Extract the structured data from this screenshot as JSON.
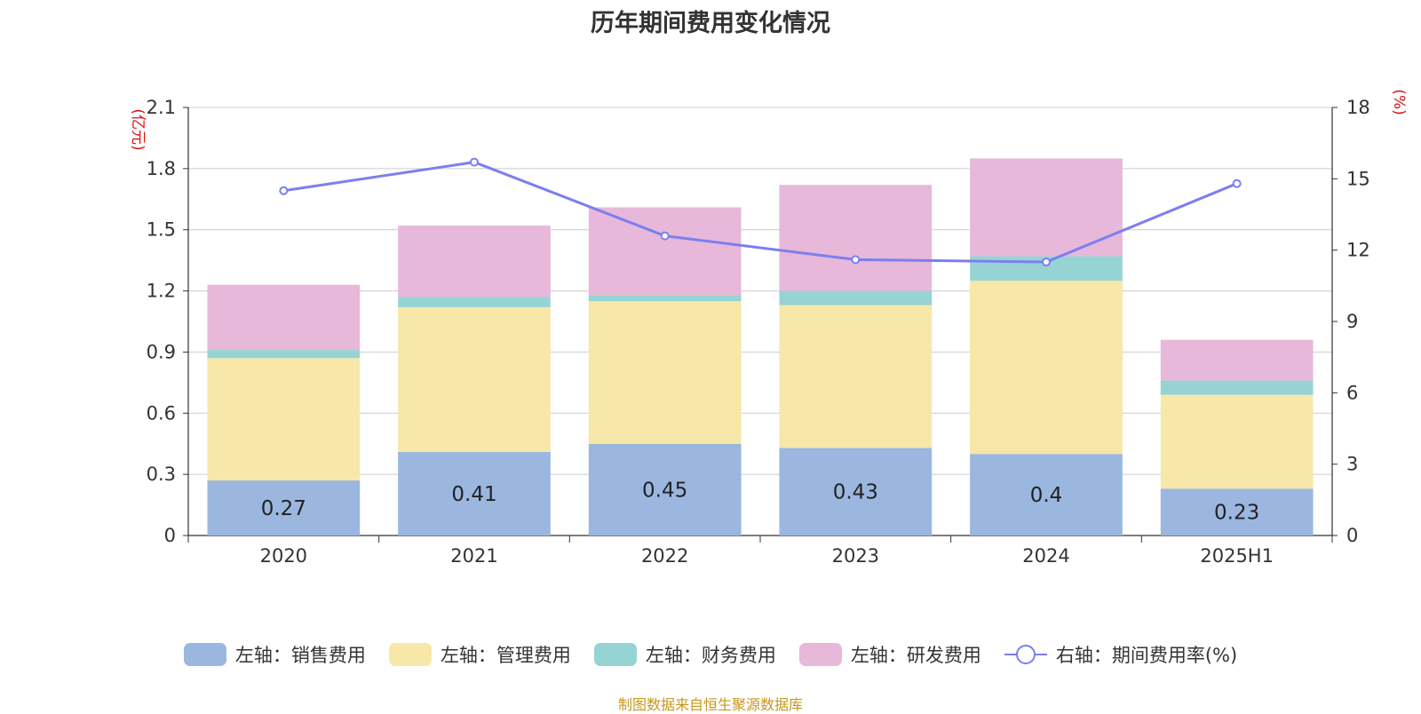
{
  "chart_data": {
    "type": "bar",
    "title": "历年期间费用变化情况",
    "categories": [
      "2020",
      "2021",
      "2022",
      "2023",
      "2024",
      "2025H1"
    ],
    "y_left": {
      "unit": "(亿元)",
      "ylim": [
        0,
        2.1
      ],
      "ticks": [
        "0",
        "0.3",
        "0.6",
        "0.9",
        "1.2",
        "1.5",
        "1.8",
        "2.1"
      ]
    },
    "y_right": {
      "unit": "(%)",
      "ylim": [
        0,
        18
      ],
      "ticks": [
        "0",
        "3",
        "6",
        "9",
        "12",
        "15",
        "18"
      ]
    },
    "grid": true,
    "legend_position": "bottom",
    "series": [
      {
        "name": "左轴：销售费用",
        "type": "bar",
        "stack": true,
        "color": "#9bb7e0",
        "values": [
          0.27,
          0.41,
          0.45,
          0.43,
          0.4,
          0.23
        ],
        "labels": [
          "0.27",
          "0.41",
          "0.45",
          "0.43",
          "0.4",
          "0.23"
        ]
      },
      {
        "name": "左轴：管理费用",
        "type": "bar",
        "stack": true,
        "color": "#f7e7a8",
        "values": [
          0.6,
          0.71,
          0.7,
          0.7,
          0.85,
          0.46
        ]
      },
      {
        "name": "左轴：财务费用",
        "type": "bar",
        "stack": true,
        "color": "#96d4d4",
        "values": [
          0.04,
          0.05,
          0.03,
          0.07,
          0.12,
          0.07
        ]
      },
      {
        "name": "左轴：研发费用",
        "type": "bar",
        "stack": true,
        "color": "#e7b8d9",
        "values": [
          0.32,
          0.35,
          0.43,
          0.52,
          0.48,
          0.2
        ]
      },
      {
        "name": "右轴：期间费用率(%)",
        "type": "line",
        "axis": "right",
        "color": "#7b7ff0",
        "values": [
          14.5,
          15.7,
          12.6,
          11.6,
          11.5,
          14.8
        ]
      }
    ]
  },
  "source_note": "制图数据来自恒生聚源数据库"
}
